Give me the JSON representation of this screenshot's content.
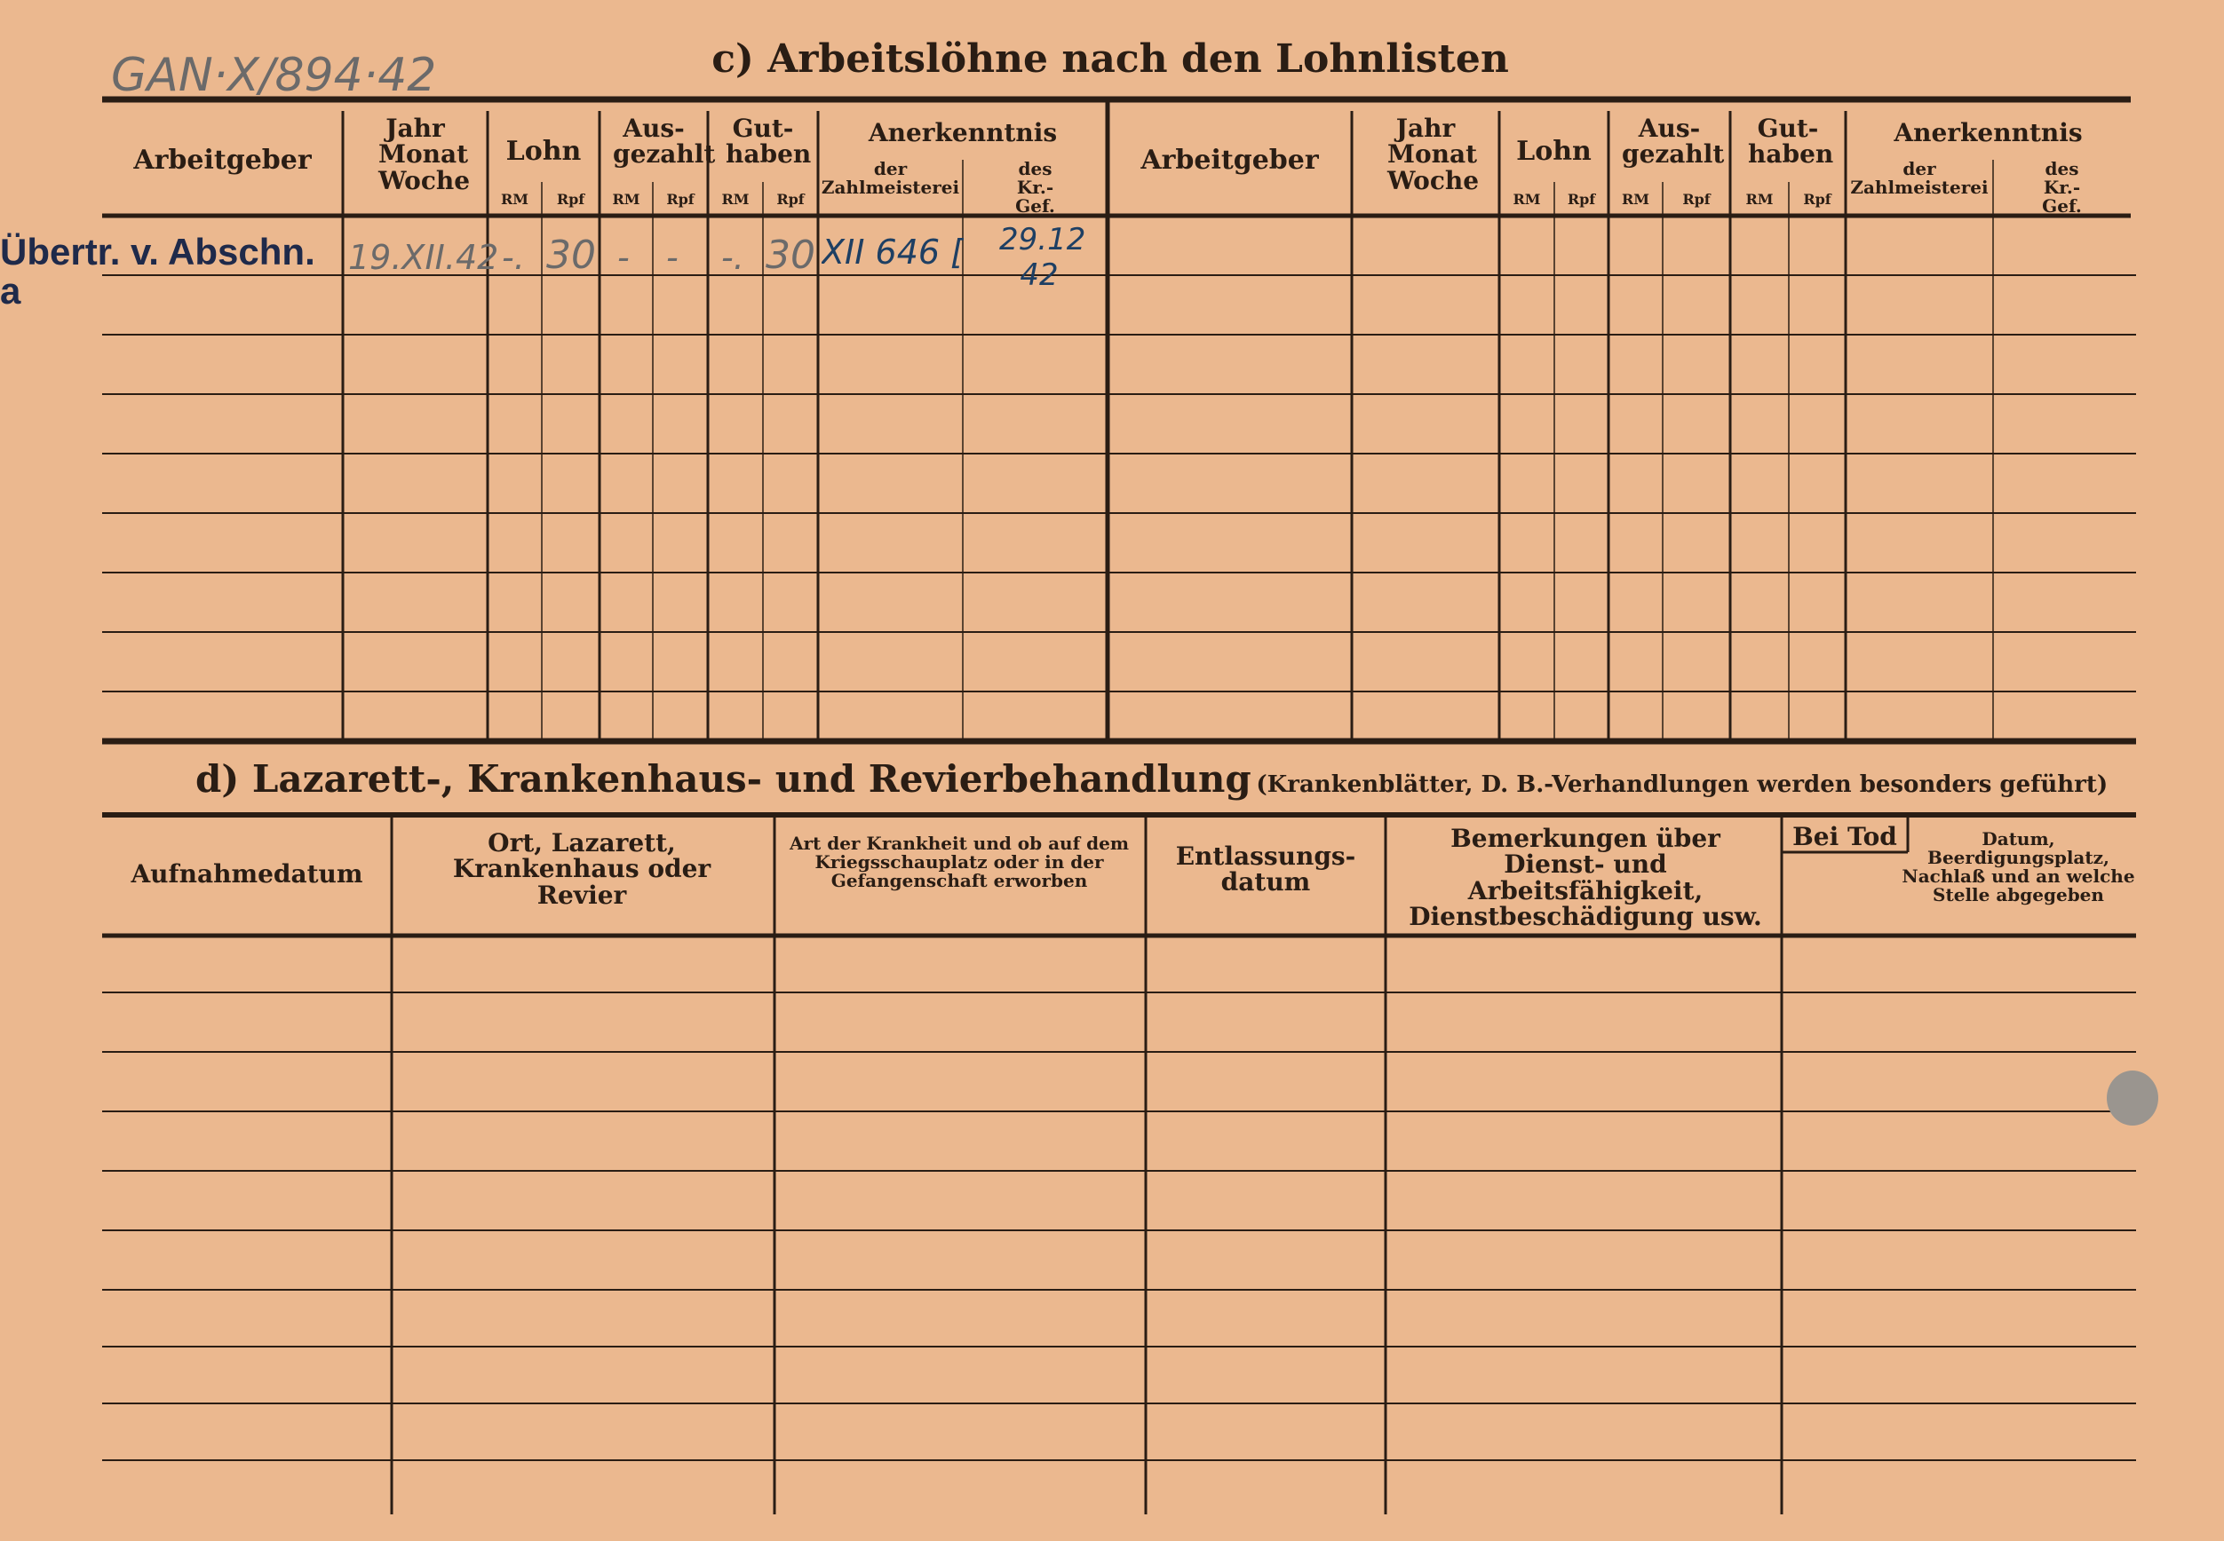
{
  "reference_number": "GAN·X/894·42",
  "section_c": {
    "title": "c) Arbeitslöhne nach den Lohnlisten",
    "headers": {
      "arbeitgeber": "Arbeitgeber",
      "jahr": "Jahr Monat Woche",
      "lohn": "Lohn",
      "ausgezahlt": "Aus-gezahlt",
      "guthaben": "Gut-haben",
      "anerkenntnis": "Anerkenntnis",
      "der": "der Zahlmeisterei",
      "des": "des Kr.-Gef.",
      "rm": "RM",
      "rpf": "Rpf"
    },
    "rows": [
      {
        "arbeitgeber": "Übertr. v. Abschn. a",
        "datum": "19.XII.42",
        "lohn_rm": "-.",
        "lohn_rpf": "30",
        "ausgezahlt_rm": "-",
        "ausgezahlt_rpf": "-",
        "guthaben_rm": "-.",
        "guthaben_rpf": "30",
        "zahlmeisterei": "XII 646 [signature]",
        "kr_gef": "29.12 42"
      }
    ]
  },
  "section_d": {
    "title": "d) Lazarett-, Krankenhaus- und Revierbehandlung",
    "subtitle": "(Krankenblätter, D. B.-Verhandlungen werden besonders geführt)",
    "headers": [
      "Aufnahmedatum",
      "Ort, Lazarett, Krankenhaus oder Revier",
      "Art der Krankheit und ob auf dem Kriegsschauplatz oder in der Gefangenschaft erworben",
      "Entlassungs-datum",
      "Bemerkungen über Dienst- und Arbeitsfähigkeit, Dienstbeschädigung usw.",
      "Bei Tod",
      "Datum, Beerdigungsplatz, Nachlaß und an welche Stelle abgegeben"
    ]
  },
  "colors": {
    "paper": "#ebb88f",
    "ink": "#2a1d14",
    "pencil": "#6b6a6a",
    "blue_ink": "#1e3f63",
    "stamp": "#1f2a4a"
  }
}
